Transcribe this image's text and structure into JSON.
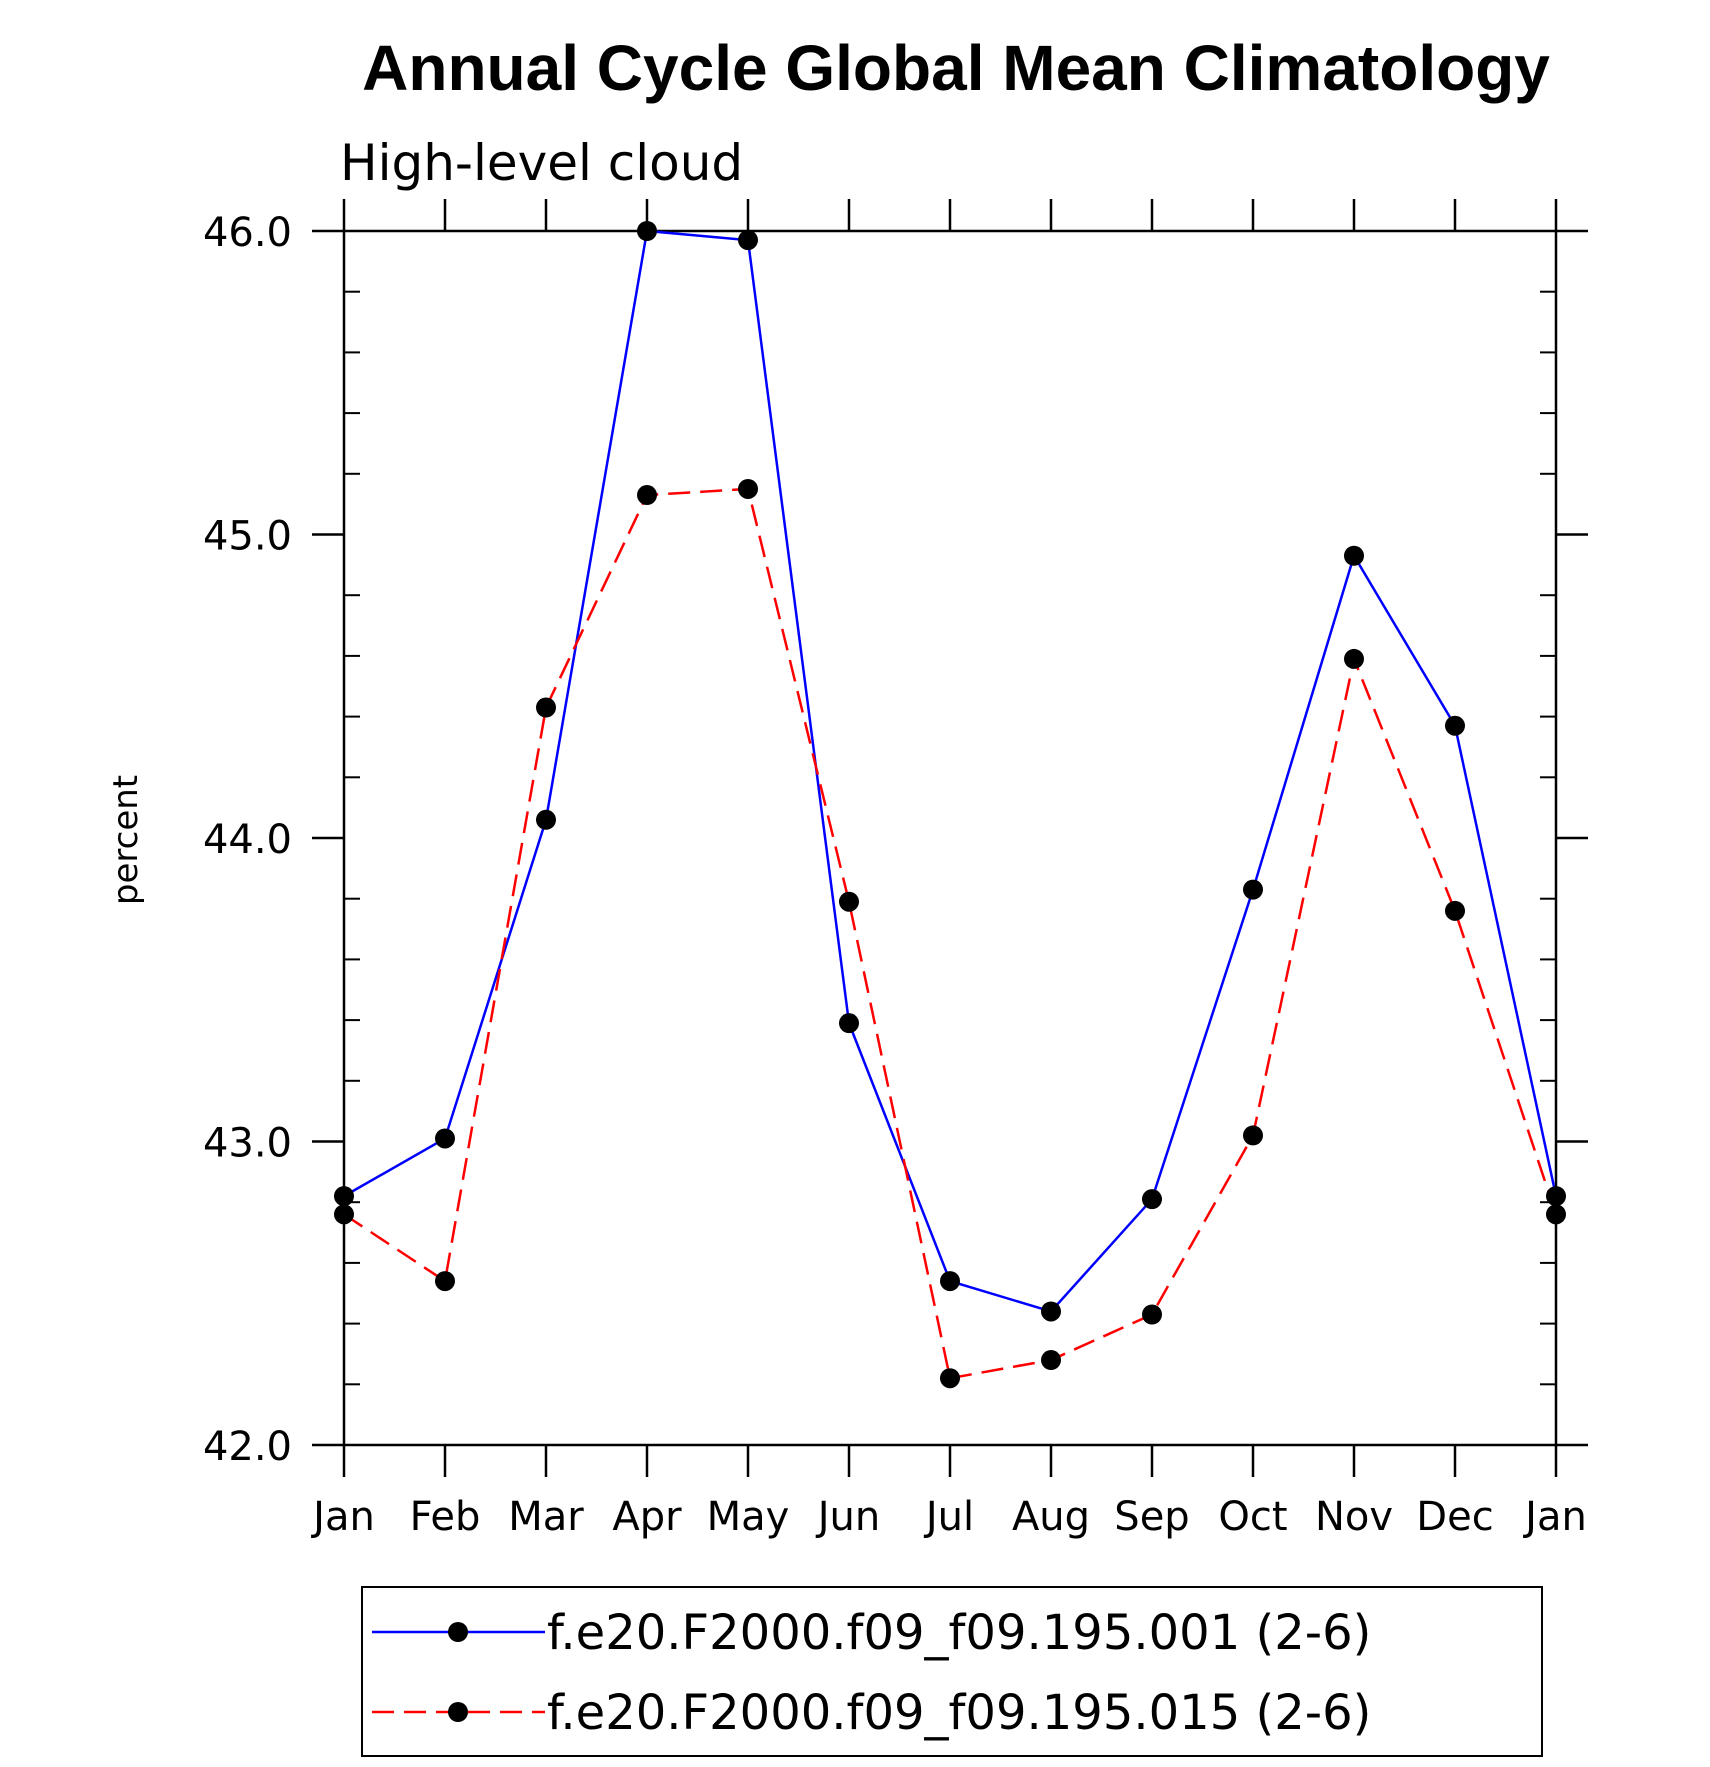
{
  "chart_data": {
    "type": "line",
    "title": "Annual Cycle Global Mean Climatology",
    "subtitle": "High-level cloud",
    "xlabel": "",
    "ylabel": "percent",
    "categories": [
      "Jan",
      "Feb",
      "Mar",
      "Apr",
      "May",
      "Jun",
      "Jul",
      "Aug",
      "Sep",
      "Oct",
      "Nov",
      "Dec",
      "Jan"
    ],
    "ylim": [
      42.0,
      46.0
    ],
    "yticks": [
      "42.0",
      "43.0",
      "44.0",
      "45.0",
      "46.0"
    ],
    "ytick_values": [
      42.0,
      43.0,
      44.0,
      45.0,
      46.0
    ],
    "yminor_step": 0.2,
    "series": [
      {
        "name": "f.e20.F2000.f09_f09.195.001 (2-6)",
        "color": "#0000ff",
        "dash": "solid",
        "values": [
          42.82,
          43.01,
          44.06,
          46.0,
          45.97,
          43.39,
          42.54,
          42.44,
          42.81,
          43.83,
          44.93,
          44.37,
          42.82
        ]
      },
      {
        "name": "f.e20.F2000.f09_f09.195.015 (2-6)",
        "color": "#ff0000",
        "dash": "dashed",
        "values": [
          42.76,
          42.54,
          44.43,
          45.13,
          45.15,
          43.79,
          42.22,
          42.28,
          42.43,
          43.02,
          44.59,
          43.76,
          42.76
        ]
      }
    ],
    "legend": {
      "position": "bottom-center",
      "entries": [
        "f.e20.F2000.f09_f09.195.001 (2-6)",
        "f.e20.F2000.f09_f09.195.015 (2-6)"
      ]
    },
    "marker_color": "#000000"
  }
}
